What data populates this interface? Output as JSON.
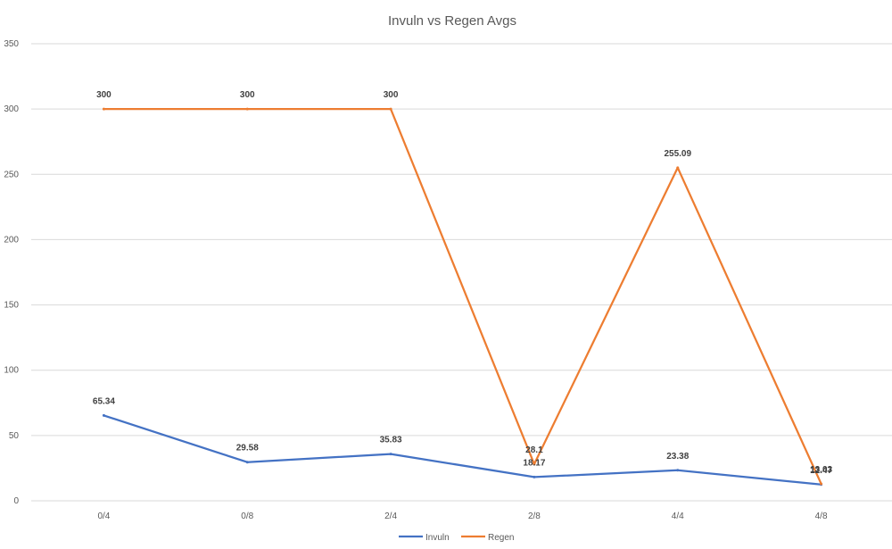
{
  "chart_data": {
    "type": "line",
    "title": "Invuln vs Regen Avgs",
    "xlabel": "",
    "ylabel": "",
    "categories": [
      "0/4",
      "0/8",
      "2/4",
      "2/8",
      "4/4",
      "4/8"
    ],
    "ylim": [
      0,
      350
    ],
    "yticks": [
      0,
      50,
      100,
      150,
      200,
      250,
      300,
      350
    ],
    "grid": true,
    "legend": "bottom",
    "series": [
      {
        "name": "Invuln",
        "color": "#4472c4",
        "values": [
          65.34,
          29.58,
          35.83,
          18.17,
          23.38,
          12.47
        ],
        "labels": [
          "65.34",
          "29.58",
          "35.83",
          "18.17",
          "23.38",
          "12.47"
        ]
      },
      {
        "name": "Regen",
        "color": "#ed7d31",
        "values": [
          300,
          300,
          300,
          28.1,
          255.09,
          13.03
        ],
        "labels": [
          "300",
          "300",
          "300",
          "28.1",
          "255.09",
          "13.03"
        ]
      }
    ]
  }
}
